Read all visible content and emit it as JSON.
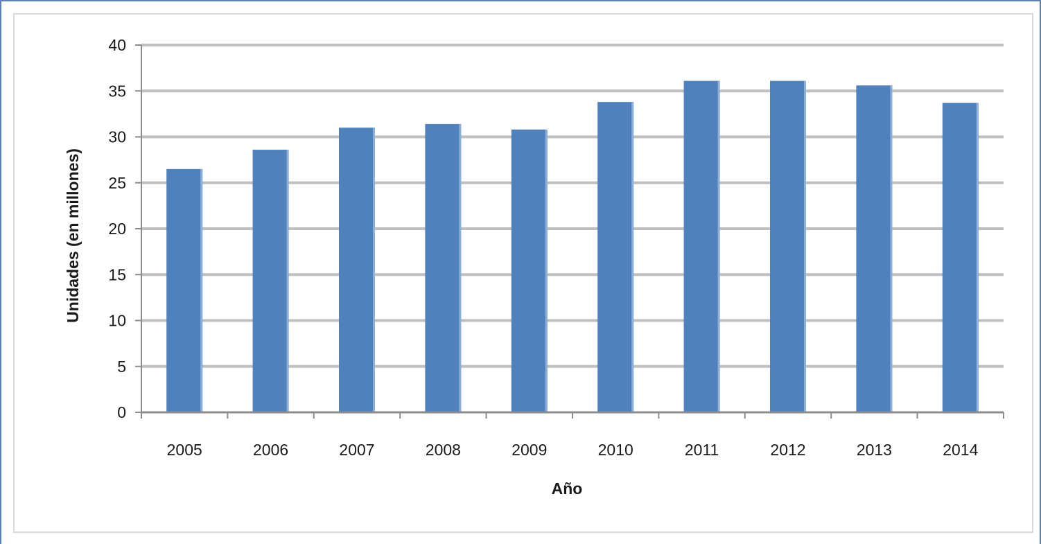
{
  "chart_data": {
    "type": "bar",
    "title": "",
    "xlabel": "Año",
    "ylabel": "Unidades (en millones)",
    "categories": [
      "2005",
      "2006",
      "2007",
      "2008",
      "2009",
      "2010",
      "2011",
      "2012",
      "2013",
      "2014"
    ],
    "values": [
      26.5,
      28.6,
      31.0,
      31.4,
      30.8,
      33.8,
      36.1,
      36.1,
      35.6,
      33.7
    ],
    "ylim": [
      0,
      40
    ],
    "yticks": [
      "0",
      "5",
      "10",
      "15",
      "20",
      "25",
      "30",
      "35",
      "40"
    ],
    "grid": true,
    "legend": "none",
    "colors": {
      "bar": "#4f81bd",
      "grid": "#bfbfbf",
      "axis": "#8c8c8c"
    }
  }
}
